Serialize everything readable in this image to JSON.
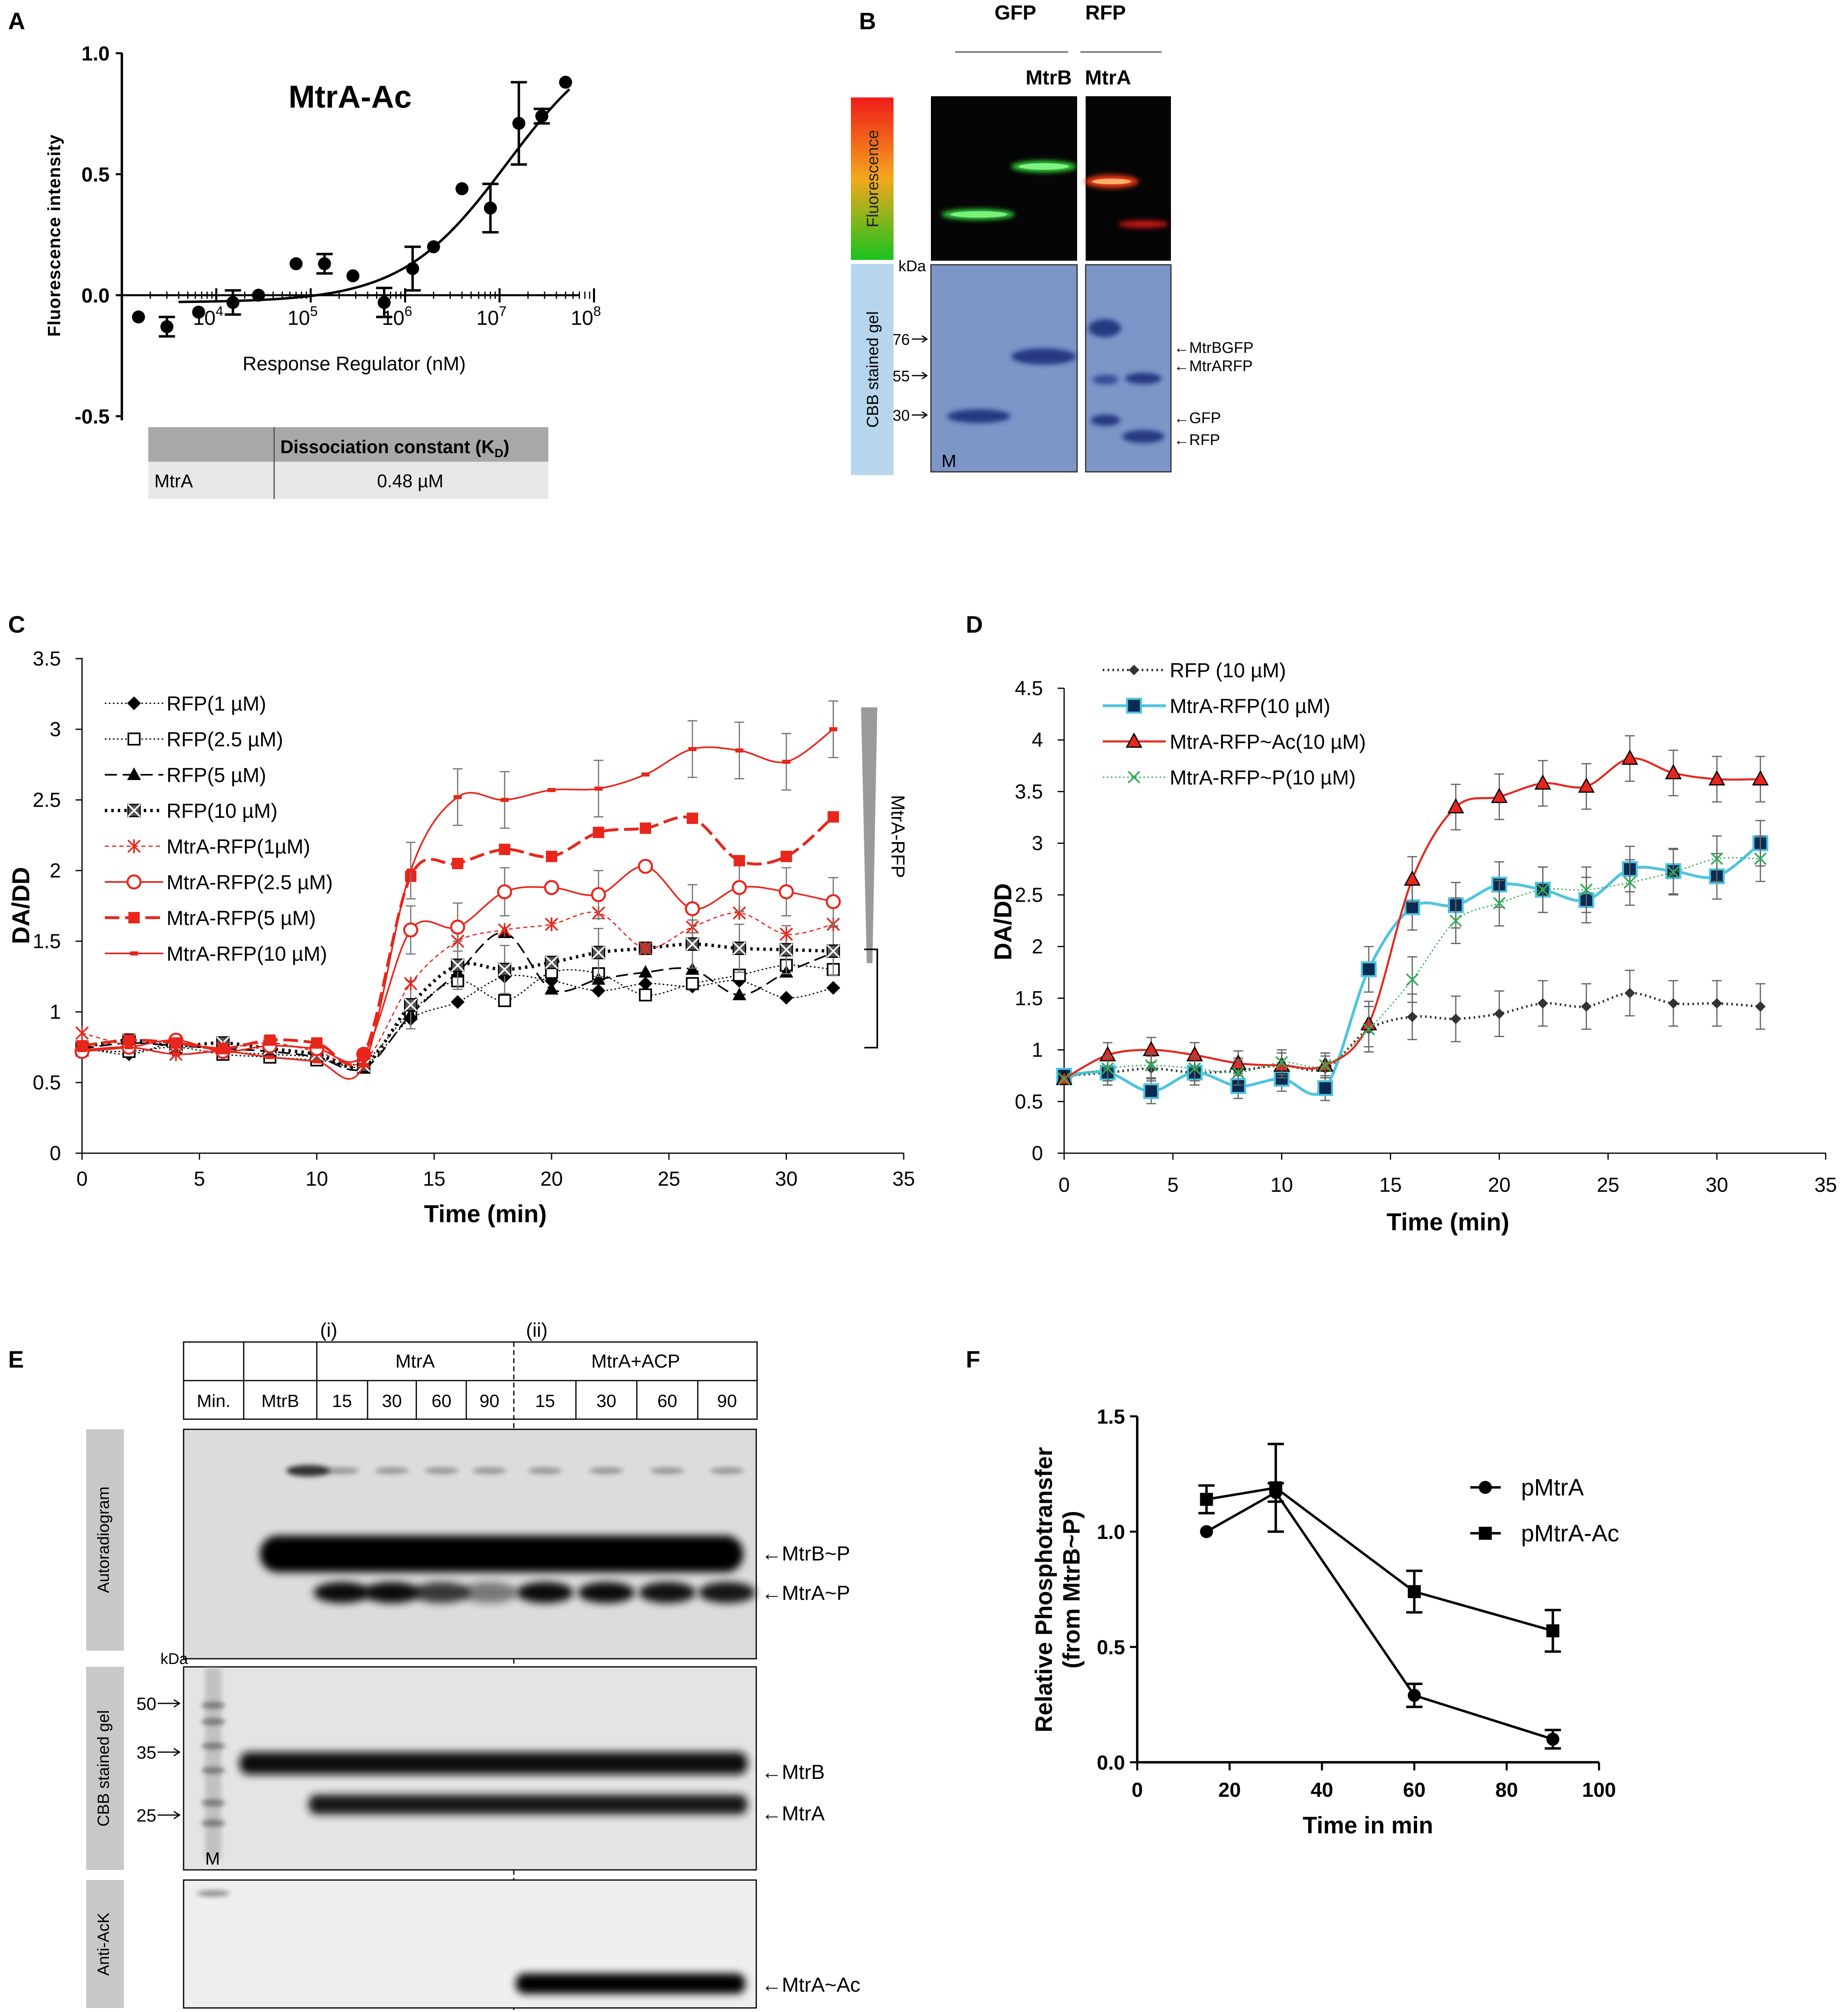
{
  "panels": {
    "A": {
      "letter": "A",
      "title": "MtrA-Ac",
      "xlabel": "Response Regulator (nM)",
      "ylabel": "Fluorescence intensity",
      "yticks": [
        "1.0",
        "0.5",
        "0.0",
        "-0.5"
      ],
      "xticks": [
        {
          "base": "10",
          "exp": "4"
        },
        {
          "base": "10",
          "exp": "5"
        },
        {
          "base": "10",
          "exp": "6"
        },
        {
          "base": "10",
          "exp": "7"
        },
        {
          "base": "10",
          "exp": "8"
        }
      ],
      "table": {
        "head_label": "Dissociation constant (K",
        "head_sub": "D",
        "head_tail": ")",
        "row_label": "MtrA",
        "row_value": "0.48 µM"
      }
    },
    "B": {
      "letter": "B",
      "gfp": "GFP",
      "rfp": "RFP",
      "mtrb": "MtrB",
      "mtra": "MtrA",
      "fluor_label": "Fluorescence",
      "cbb_label": "CBB stained gel",
      "kda": "kDa",
      "markers": [
        "76",
        "55",
        "30"
      ],
      "m": "M",
      "bands": [
        "MtrBGFP",
        "MtrARFP",
        "GFP",
        "RFP"
      ]
    },
    "C": {
      "letter": "C",
      "bracket_label": "MtrA-RFP"
    },
    "D": {
      "letter": "D"
    },
    "E": {
      "letter": "E",
      "group_i": "(i)",
      "group_ii": "(ii)",
      "head_mtra": "MtrA",
      "head_mtra_acp": "MtrA+ACP",
      "col_min": "Min.",
      "col_mtrb": "MtrB",
      "times_i": [
        "15",
        "30",
        "60",
        "90"
      ],
      "times_ii": [
        "15",
        "30",
        "60",
        "90"
      ],
      "side_autorad": "Autoradiogram",
      "side_cbb": "CBB stained gel",
      "side_anti": "Anti-AcK",
      "kda": "kDa",
      "markers": [
        "50",
        "35",
        "25"
      ],
      "m": "M",
      "bands_autorad": [
        "MtrB~P",
        "MtrA~P"
      ],
      "bands_cbb": [
        "MtrB",
        "MtrA"
      ],
      "bands_anti": [
        "MtrA~Ac"
      ]
    },
    "F": {
      "letter": "F"
    }
  },
  "colors": {
    "red": "#e8261c",
    "cyan": "#4fc4df",
    "green": "#2fae55",
    "gray_bar": "#c8c8c8",
    "gel_blue": "#7d96c8"
  },
  "chart_data": [
    {
      "id": "A",
      "type": "scatter",
      "title": "MtrA-Ac",
      "xlabel": "Response Regulator (nM)",
      "ylabel": "Fluorescence intensity",
      "xscale": "log",
      "xlim": [
        1000,
        100000000
      ],
      "ylim": [
        -0.5,
        1.0
      ],
      "points": [
        {
          "x": 1500,
          "y": -0.09
        },
        {
          "x": 3000,
          "y": -0.13,
          "err": 0.04
        },
        {
          "x": 6500,
          "y": -0.07
        },
        {
          "x": 15000,
          "y": -0.03,
          "err": 0.05
        },
        {
          "x": 28000,
          "y": 0.0
        },
        {
          "x": 70000,
          "y": 0.13
        },
        {
          "x": 140000,
          "y": 0.13,
          "err": 0.04
        },
        {
          "x": 280000,
          "y": 0.08
        },
        {
          "x": 600000,
          "y": -0.03,
          "err": 0.06
        },
        {
          "x": 1200000,
          "y": 0.11,
          "err": 0.09
        },
        {
          "x": 2000000,
          "y": 0.2
        },
        {
          "x": 4000000,
          "y": 0.44
        },
        {
          "x": 8000000,
          "y": 0.36,
          "err": 0.1
        },
        {
          "x": 16000000,
          "y": 0.71,
          "err": 0.17
        },
        {
          "x": 28000000,
          "y": 0.74,
          "err": 0.03
        },
        {
          "x": 50000000,
          "y": 0.88
        }
      ],
      "fit": "sigmoidal",
      "annotations": [
        {
          "label": "MtrA",
          "kd": "0.48 µM"
        }
      ]
    },
    {
      "id": "C",
      "type": "line",
      "xlabel": "Time (min)",
      "ylabel": "DA/DD",
      "xlim": [
        0,
        35
      ],
      "ylim": [
        0,
        3.5
      ],
      "x": [
        0,
        2,
        4,
        6,
        8,
        10,
        12,
        14,
        16,
        18,
        20,
        22,
        24,
        26,
        28,
        30,
        32
      ],
      "series": [
        {
          "name": "RFP(1 µM)",
          "values": [
            0.75,
            0.7,
            0.78,
            0.72,
            0.7,
            0.68,
            0.62,
            0.95,
            1.07,
            1.25,
            1.22,
            1.15,
            1.2,
            1.18,
            1.22,
            1.1,
            1.17
          ]
        },
        {
          "name": "RFP(2.5 µM)",
          "values": [
            0.73,
            0.72,
            0.75,
            0.7,
            0.68,
            0.66,
            0.65,
            1.0,
            1.22,
            1.08,
            1.28,
            1.27,
            1.12,
            1.2,
            1.26,
            1.33,
            1.3
          ]
        },
        {
          "name": "RFP(5 µM)",
          "values": [
            0.74,
            0.78,
            0.76,
            0.74,
            0.72,
            0.68,
            0.6,
            0.98,
            1.28,
            1.56,
            1.16,
            1.23,
            1.28,
            1.3,
            1.12,
            1.28,
            1.42
          ]
        },
        {
          "name": "RFP(10 µM)",
          "values": [
            0.75,
            0.8,
            0.76,
            0.78,
            0.74,
            0.7,
            0.62,
            1.05,
            1.33,
            1.3,
            1.35,
            1.42,
            1.45,
            1.48,
            1.45,
            1.44,
            1.43
          ]
        },
        {
          "name": "MtrA-RFP(1µM)",
          "values": [
            0.85,
            0.76,
            0.7,
            0.74,
            0.78,
            0.72,
            0.65,
            1.2,
            1.5,
            1.58,
            1.62,
            1.7,
            1.45,
            1.6,
            1.7,
            1.55,
            1.62
          ]
        },
        {
          "name": "MtrA-RFP(2.5 µM)",
          "values": [
            0.72,
            0.75,
            0.8,
            0.72,
            0.76,
            0.74,
            0.7,
            1.58,
            1.6,
            1.85,
            1.88,
            1.83,
            2.03,
            1.73,
            1.88,
            1.85,
            1.78
          ]
        },
        {
          "name": "MtrA-RFP(5 µM)",
          "values": [
            0.76,
            0.8,
            0.78,
            0.74,
            0.8,
            0.78,
            0.7,
            1.96,
            2.05,
            2.15,
            2.1,
            2.27,
            2.3,
            2.37,
            2.07,
            2.1,
            2.38
          ]
        },
        {
          "name": "MtrA-RFP(10 µM)",
          "values": [
            0.73,
            0.75,
            0.7,
            0.72,
            0.68,
            0.65,
            0.62,
            2.0,
            2.52,
            2.5,
            2.57,
            2.58,
            2.68,
            2.86,
            2.85,
            2.77,
            3.0
          ]
        }
      ]
    },
    {
      "id": "D",
      "type": "line",
      "xlabel": "Time (min)",
      "ylabel": "DA/DD",
      "xlim": [
        0,
        35
      ],
      "ylim": [
        0,
        4.5
      ],
      "x": [
        0,
        2,
        4,
        6,
        8,
        10,
        12,
        14,
        16,
        18,
        20,
        22,
        24,
        26,
        28,
        30,
        32
      ],
      "series": [
        {
          "name": "RFP (10 µM)",
          "values": [
            0.75,
            0.78,
            0.82,
            0.78,
            0.8,
            0.85,
            0.82,
            1.2,
            1.32,
            1.3,
            1.35,
            1.45,
            1.42,
            1.55,
            1.45,
            1.45,
            1.42
          ]
        },
        {
          "name": "MtrA-RFP(10 µM)",
          "values": [
            0.75,
            0.78,
            0.6,
            0.78,
            0.65,
            0.72,
            0.63,
            1.78,
            2.38,
            2.4,
            2.6,
            2.55,
            2.45,
            2.75,
            2.73,
            2.68,
            3.0
          ]
        },
        {
          "name": "MtrA-RFP~Ac(10 µM)",
          "values": [
            0.72,
            0.95,
            1.0,
            0.95,
            0.87,
            0.85,
            0.85,
            1.25,
            2.65,
            3.35,
            3.45,
            3.58,
            3.55,
            3.82,
            3.68,
            3.62,
            3.62
          ]
        },
        {
          "name": "MtrA-RFP~P(10 µM)",
          "values": [
            0.72,
            0.82,
            0.85,
            0.82,
            0.78,
            0.88,
            0.85,
            1.2,
            1.68,
            2.25,
            2.42,
            2.55,
            2.55,
            2.62,
            2.72,
            2.85,
            2.85
          ]
        }
      ]
    },
    {
      "id": "F",
      "type": "line",
      "xlabel": "Time in min",
      "ylabel": "Relative Phosphotransfer",
      "ylabel2": "(from MtrB~P)",
      "xlim": [
        0,
        100
      ],
      "ylim": [
        0,
        1.5
      ],
      "x": [
        15,
        30,
        60,
        90
      ],
      "series": [
        {
          "name": "pMtrA",
          "values": [
            1.0,
            1.17,
            0.29,
            0.1
          ]
        },
        {
          "name": "pMtrA-Ac",
          "values": [
            1.14,
            1.19,
            0.74,
            0.57
          ]
        }
      ]
    }
  ]
}
